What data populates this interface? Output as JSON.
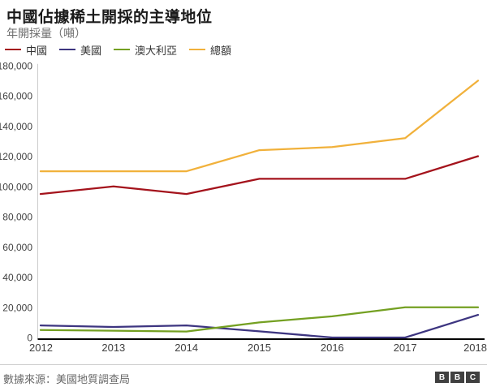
{
  "title": "中國佔據稀土開採的主導地位",
  "subtitle": "年開採量（噸）",
  "source": "數據來源：美國地質調查局",
  "logo_blocks": [
    "B",
    "B",
    "C"
  ],
  "colors": {
    "china": "#a4131c",
    "usa": "#3d3580",
    "australia": "#74a022",
    "total": "#f1b13b",
    "axis": "#000000",
    "gridline": "#cccccc",
    "tick_text": "#404040",
    "title_text": "#1a1a1a",
    "subtitle_text": "#6e6e6e",
    "source_text": "#696969",
    "logo_bg": "#404040"
  },
  "chart_data": {
    "type": "line",
    "x": [
      2012,
      2013,
      2014,
      2015,
      2016,
      2017,
      2018
    ],
    "series": [
      {
        "key": "china",
        "name": "中國",
        "values": [
          95000,
          100000,
          95000,
          105000,
          105000,
          105000,
          120000
        ]
      },
      {
        "key": "usa",
        "name": "美國",
        "values": [
          8000,
          7000,
          8000,
          4100,
          0,
          0,
          15000
        ]
      },
      {
        "key": "australia",
        "name": "澳大利亞",
        "values": [
          5000,
          4500,
          4000,
          10000,
          14000,
          20000,
          20000
        ]
      },
      {
        "key": "total",
        "name": "總額",
        "values": [
          110000,
          110000,
          110000,
          124000,
          126000,
          132000,
          170000
        ]
      }
    ],
    "ylim": [
      0,
      180000
    ],
    "ytick_step": 20000,
    "xlabel": "",
    "ylabel": "年開採量（噸）",
    "legend_position": "top",
    "grid": false
  }
}
